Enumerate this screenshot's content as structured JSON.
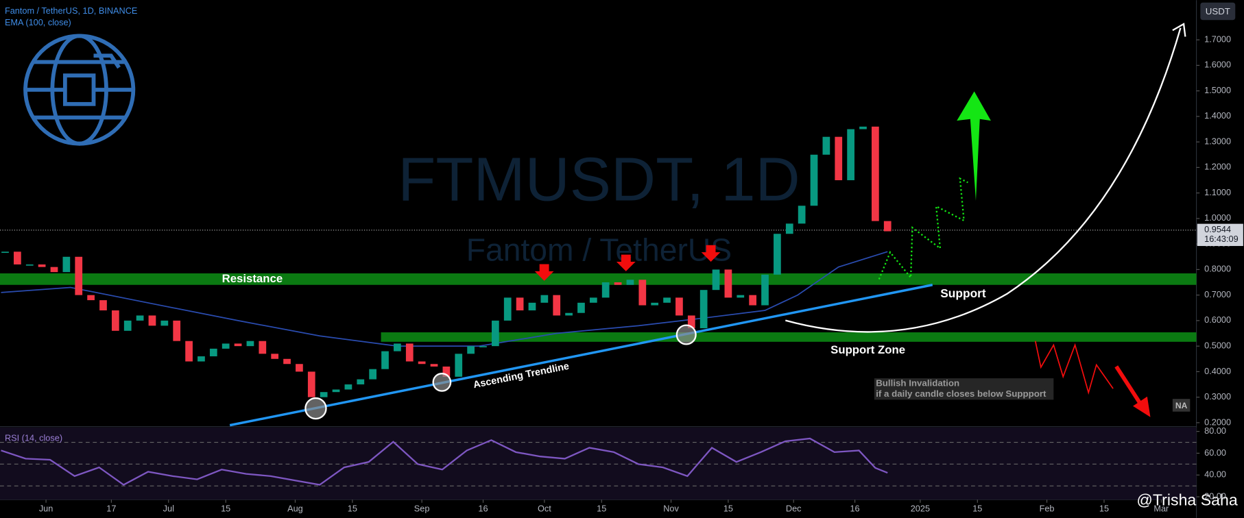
{
  "chart_data": [
    {
      "type": "candlestick",
      "title": "Fantom / TetherUS, 1D, BINANCE",
      "watermark": "FTMUSDT, 1D",
      "watermark_subtitle": "Fantom / TetherUS",
      "currency": "USDT",
      "xlim": [
        -11.26,
        281.6
      ],
      "xticks": [
        {
          "value": 0,
          "label": "Jun"
        },
        {
          "value": 16,
          "label": "17"
        },
        {
          "value": 30,
          "label": "Jul"
        },
        {
          "value": 44,
          "label": "15"
        },
        {
          "value": 61,
          "label": "Aug"
        },
        {
          "value": 75,
          "label": "15"
        },
        {
          "value": 92,
          "label": "Sep"
        },
        {
          "value": 107,
          "label": "16"
        },
        {
          "value": 122,
          "label": "Oct"
        },
        {
          "value": 136,
          "label": "15"
        },
        {
          "value": 153,
          "label": "Nov"
        },
        {
          "value": 167,
          "label": "15"
        },
        {
          "value": 183,
          "label": "Dec"
        },
        {
          "value": 198,
          "label": "16"
        },
        {
          "value": 214,
          "label": "2025"
        },
        {
          "value": 228,
          "label": "15"
        },
        {
          "value": 245,
          "label": "Feb"
        },
        {
          "value": 259,
          "label": "15"
        },
        {
          "value": 273,
          "label": "Mar"
        }
      ],
      "ylim": [
        0.1845,
        1.8553
      ],
      "yticks": [
        {
          "value": 0.2,
          "label": "0.2000"
        },
        {
          "value": 0.3,
          "label": "0.3000"
        },
        {
          "value": 0.4,
          "label": "0.4000"
        },
        {
          "value": 0.5,
          "label": "0.5000"
        },
        {
          "value": 0.6,
          "label": "0.6000"
        },
        {
          "value": 0.7,
          "label": "0.7000"
        },
        {
          "value": 0.8,
          "label": "0.8000"
        },
        {
          "value": 0.9,
          "label": "0.9000"
        },
        {
          "value": 1.0,
          "label": "1.0000"
        },
        {
          "value": 1.1,
          "label": "1.1000"
        },
        {
          "value": 1.2,
          "label": "1.2000"
        },
        {
          "value": 1.3,
          "label": "1.3000"
        },
        {
          "value": 1.4,
          "label": "1.4000"
        },
        {
          "value": 1.5,
          "label": "1.5000"
        },
        {
          "value": 1.6,
          "label": "1.6000"
        },
        {
          "value": 1.7,
          "label": "1.7000"
        }
      ],
      "series": [
        {
          "x": [
            -10,
            -7,
            -4,
            -1,
            2,
            5,
            8,
            11,
            14,
            17,
            20,
            23,
            26,
            29,
            32,
            35,
            38,
            41,
            44,
            47,
            50,
            53,
            56,
            59,
            62,
            65,
            68,
            71,
            74,
            77,
            80,
            83,
            86,
            89,
            92,
            95,
            98,
            101,
            104,
            107,
            110,
            113,
            116,
            119,
            122,
            125,
            128,
            131,
            134,
            137,
            140,
            143,
            146,
            149,
            152,
            155,
            158,
            161,
            164,
            167,
            170,
            173,
            176,
            179,
            182,
            185,
            188,
            191,
            194,
            197,
            200,
            203,
            206
          ],
          "values": [
            0.87,
            0.82,
            0.82,
            0.81,
            0.79,
            0.85,
            0.7,
            0.68,
            0.64,
            0.56,
            0.6,
            0.62,
            0.58,
            0.6,
            0.52,
            0.44,
            0.46,
            0.49,
            0.51,
            0.5,
            0.52,
            0.47,
            0.45,
            0.43,
            0.4,
            0.3,
            0.32,
            0.33,
            0.35,
            0.37,
            0.41,
            0.48,
            0.51,
            0.44,
            0.43,
            0.42,
            0.38,
            0.47,
            0.5,
            0.5,
            0.6,
            0.69,
            0.64,
            0.67,
            0.7,
            0.62,
            0.63,
            0.67,
            0.69,
            0.75,
            0.74,
            0.76,
            0.66,
            0.67,
            0.69,
            0.62,
            0.57,
            0.72,
            0.8,
            0.69,
            0.7,
            0.66,
            0.78,
            0.94,
            0.98,
            1.05,
            1.25,
            1.32,
            1.15,
            1.35,
            1.36,
            0.99,
            0.95
          ],
          "up_color": "#089981",
          "down_color": "#f23645"
        },
        {
          "name": "EMA (100, close)",
          "color": "#2a4cb0",
          "x": [
            -11,
            6,
            28,
            47,
            67,
            86,
            106,
            125,
            145,
            161,
            176,
            184,
            194,
            206
          ],
          "values": [
            0.71,
            0.73,
            0.66,
            0.6,
            0.54,
            0.5,
            0.5,
            0.55,
            0.58,
            0.61,
            0.64,
            0.7,
            0.81,
            0.87
          ]
        }
      ],
      "last_price": {
        "value": 0.9544,
        "countdown": "16:43:09"
      },
      "zones": [
        {
          "label": "Resistance",
          "from": 0.74,
          "to": 0.785,
          "x_start": -11.26,
          "color": "#0b7a12"
        },
        {
          "label": "Support Zone",
          "from": 0.517,
          "to": 0.554,
          "x_start": 82,
          "color": "#0b7a12"
        }
      ],
      "trendline": {
        "label": "Ascending Trendline",
        "x": [
          45,
          217
        ],
        "y": [
          0.19,
          0.74
        ],
        "color": "#2196f3"
      },
      "annotations": [
        "Support",
        "Bullish Invalidation",
        "if a daily candle closes below Suppport",
        "NA"
      ],
      "credit": "@Trisha Saha"
    },
    {
      "type": "line",
      "title": "RSI (14, close)",
      "color": "#7e57c2",
      "xlim": [
        -11.26,
        281.6
      ],
      "ylim": [
        17.45,
        83.64
      ],
      "yticks": [
        {
          "value": 20,
          "label": "20.00"
        },
        {
          "value": 40,
          "label": "40.00"
        },
        {
          "value": 60,
          "label": "60.00"
        },
        {
          "value": 80,
          "label": "80.00"
        }
      ],
      "bands": [
        30,
        50,
        70
      ],
      "x": [
        -11,
        -5,
        1,
        7,
        13,
        19,
        25,
        31,
        37,
        43,
        49,
        55,
        61,
        67,
        73,
        79,
        85,
        91,
        97,
        103,
        109,
        115,
        121,
        127,
        133,
        139,
        145,
        151,
        157,
        163,
        169,
        175,
        181,
        187,
        193,
        199,
        203,
        206
      ],
      "values": [
        62.5,
        55,
        54,
        39,
        47,
        31,
        43,
        39,
        36,
        45,
        41,
        39,
        35,
        31,
        47,
        52,
        70.5,
        50,
        45,
        62.5,
        72,
        61,
        57,
        55,
        65,
        61,
        50,
        47,
        39,
        65,
        52,
        61,
        71,
        73.5,
        61,
        62.5,
        46.5,
        42
      ]
    }
  ]
}
